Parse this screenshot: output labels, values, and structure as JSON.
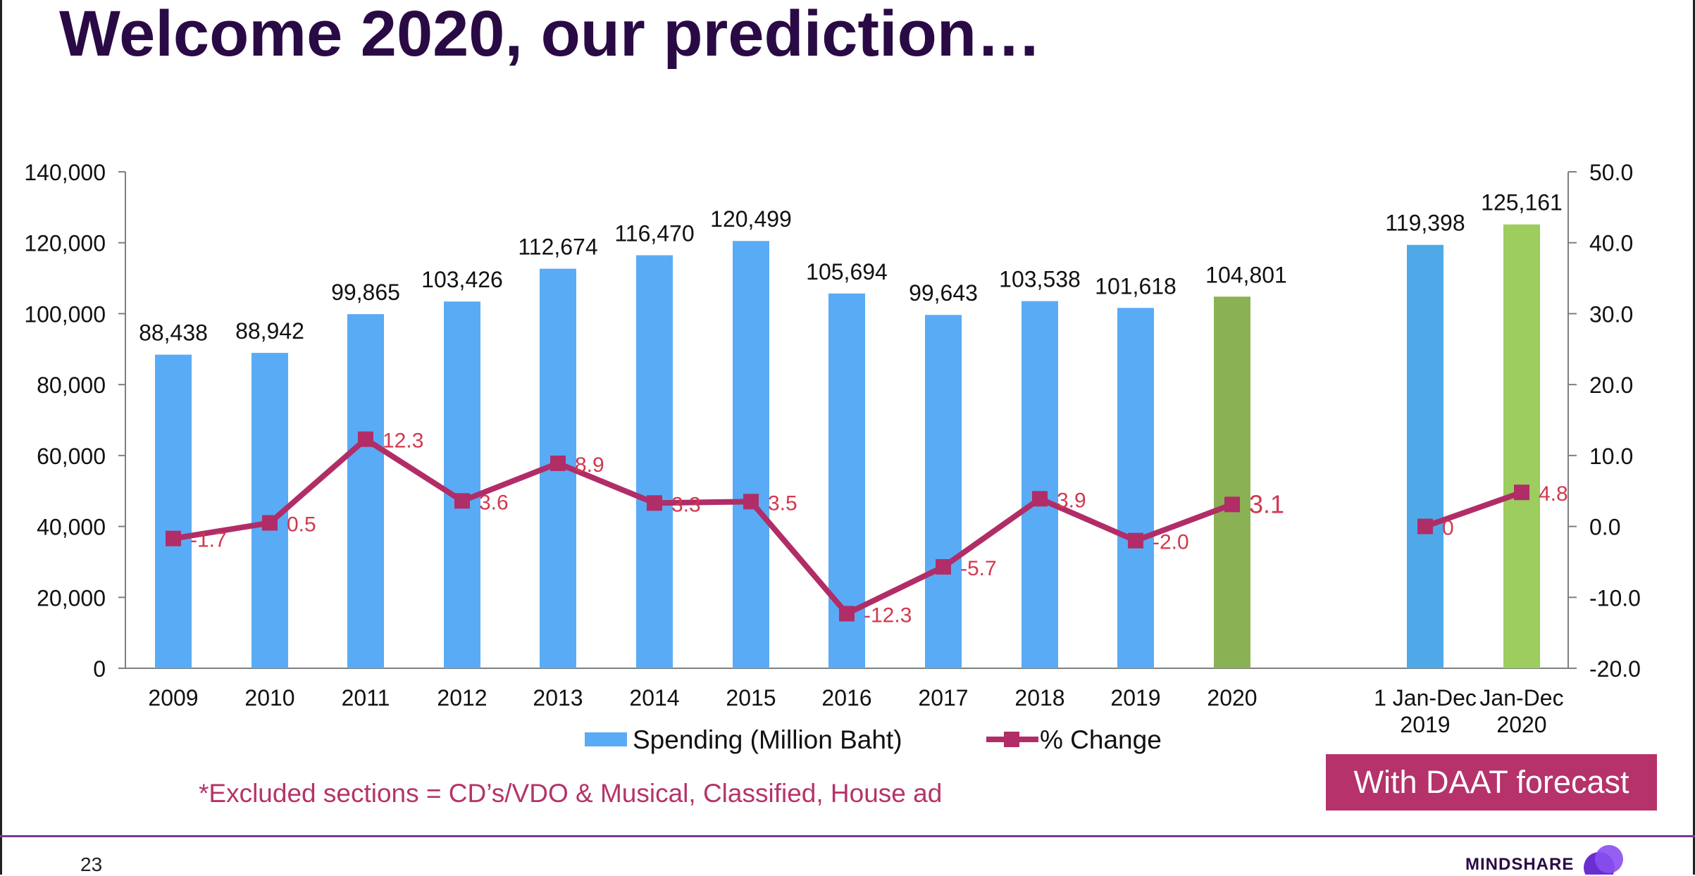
{
  "title": "Welcome 2020, our prediction…",
  "footnote": "*Excluded sections = CD’s/VDO & Musical, Classified, House ad",
  "badge": "With DAAT forecast",
  "page_number": "23",
  "brand": "MINDSHARE",
  "colors": {
    "bar": "#5aabf5",
    "bar_2020": "#8bb155",
    "bar_right_2019": "#4fa9e8",
    "bar_right_2020": "#9ccd5e",
    "line": "#b12d67",
    "line_label": "#d2384e",
    "title": "#2a0a45",
    "axis": "#7f7f7f"
  },
  "chart_data": {
    "type": "bar+line",
    "categories": [
      "2009",
      "2010",
      "2011",
      "2012",
      "2013",
      "2014",
      "2015",
      "2016",
      "2017",
      "2018",
      "2019",
      "2020",
      "1 Jan-Dec 2019",
      "Jan-Dec 2020"
    ],
    "series": [
      {
        "name": "Spending (Million Baht)",
        "type": "bar",
        "axis": "left",
        "values": [
          88438,
          88942,
          99865,
          103426,
          112674,
          116470,
          120499,
          105694,
          99643,
          103538,
          101618,
          104801,
          119398,
          125161
        ],
        "labels": [
          "88,438",
          "88,942",
          "99,865",
          "103,426",
          "112,674",
          "116,470",
          "120,499",
          "105,694",
          "99,643",
          "103,538",
          "101,618",
          "104,801",
          "119,398",
          "125,161"
        ]
      },
      {
        "name": "% Change",
        "type": "line",
        "axis": "right",
        "values": [
          -1.7,
          0.5,
          12.3,
          3.6,
          8.9,
          3.3,
          3.5,
          -12.3,
          -5.7,
          3.9,
          -2.0,
          3.1,
          0,
          4.8
        ],
        "labels": [
          "-1.7",
          "0.5",
          "12.3",
          "3.6",
          "8.9",
          "3.3",
          "3.5",
          "-12.3",
          "-5.7",
          "3.9",
          "-2.0",
          "3.1",
          "0",
          "4.8"
        ]
      }
    ],
    "y_left": {
      "min": 0,
      "max": 140000,
      "ticks": [
        "0",
        "20,000",
        "40,000",
        "60,000",
        "80,000",
        "100,000",
        "120,000",
        "140,000"
      ]
    },
    "y_right": {
      "min": -20,
      "max": 50,
      "ticks": [
        "-20.0",
        "-10.0",
        "0.0",
        "10.0",
        "20.0",
        "30.0",
        "40.0",
        "50.0"
      ]
    },
    "x_tick_labels": [
      [
        "2009"
      ],
      [
        "2010"
      ],
      [
        "2011"
      ],
      [
        "2012"
      ],
      [
        "2013"
      ],
      [
        "2014"
      ],
      [
        "2015"
      ],
      [
        "2016"
      ],
      [
        "2017"
      ],
      [
        "2018"
      ],
      [
        "2019"
      ],
      [
        "2020"
      ],
      [
        "1 Jan-Dec",
        "2019"
      ],
      [
        "Jan-Dec",
        "2020"
      ]
    ],
    "legend": {
      "placement": "bottom",
      "items": [
        "Spending (Million Baht)",
        "% Change"
      ]
    },
    "grid": false
  }
}
